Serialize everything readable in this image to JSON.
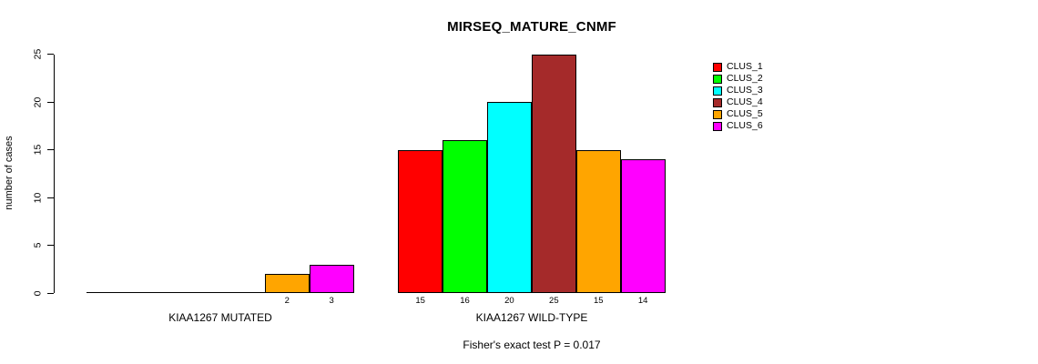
{
  "chart_data": {
    "type": "bar",
    "title": "MIRSEQ_MATURE_CNMF",
    "ylabel": "number of cases",
    "xlabel": "",
    "ylim": [
      0,
      25
    ],
    "yticks": [
      0,
      5,
      10,
      15,
      20,
      25
    ],
    "grid": false,
    "legend_position": "right",
    "categories": [
      "KIAA1267 MUTATED",
      "KIAA1267 WILD-TYPE"
    ],
    "series": [
      {
        "name": "CLUS_1",
        "color": "#FF0000",
        "values": [
          0,
          15
        ]
      },
      {
        "name": "CLUS_2",
        "color": "#00FF00",
        "values": [
          0,
          16
        ]
      },
      {
        "name": "CLUS_3",
        "color": "#00FFFF",
        "values": [
          0,
          20
        ]
      },
      {
        "name": "CLUS_4",
        "color": "#A52A2A",
        "values": [
          0,
          25
        ]
      },
      {
        "name": "CLUS_5",
        "color": "#FFA500",
        "values": [
          2,
          15
        ]
      },
      {
        "name": "CLUS_6",
        "color": "#FF00FF",
        "values": [
          3,
          14
        ]
      }
    ],
    "bar_value_labels": {
      "KIAA1267 MUTATED": [
        "2",
        "3"
      ],
      "KIAA1267 WILD-TYPE": [
        "15",
        "16",
        "20",
        "25",
        "15",
        "14"
      ]
    },
    "annotation": "Fisher's exact test P = 0.017"
  }
}
